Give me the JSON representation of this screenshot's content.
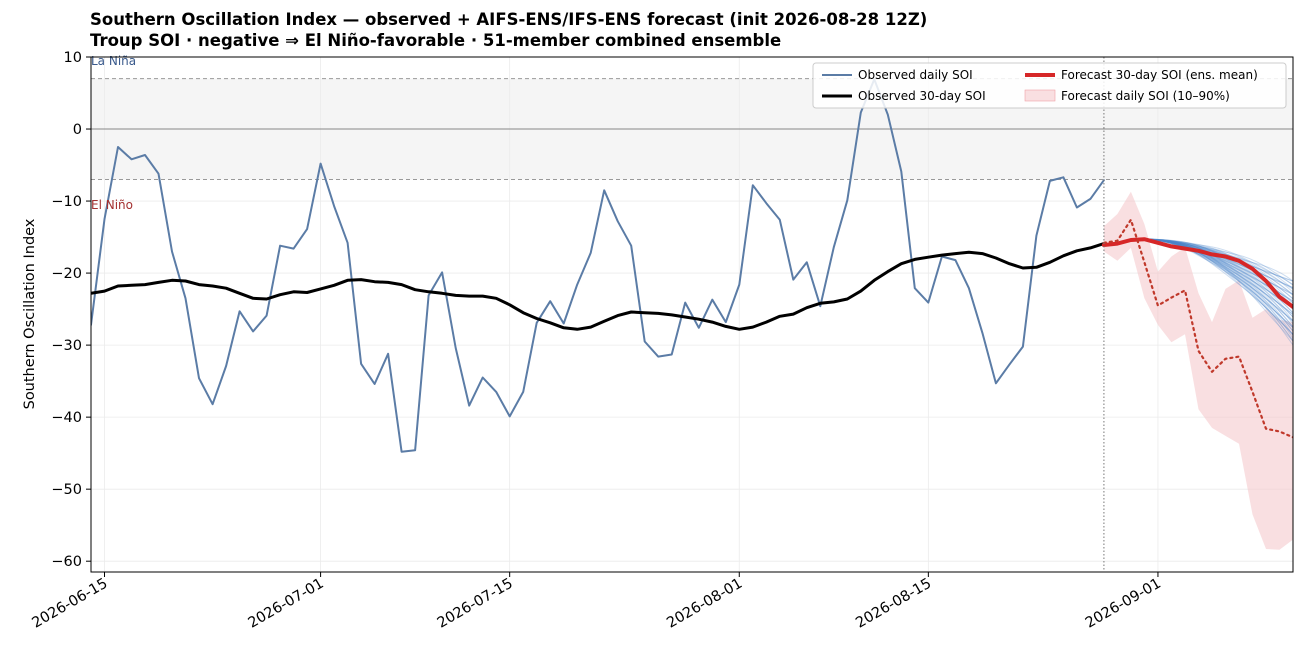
{
  "chart_data": {
    "type": "line",
    "title": "Southern Oscillation Index — observed + AIFS-ENS/IFS-ENS forecast (init 2026-08-28 12Z)",
    "subtitle": "Troup SOI · negative ⇒ El Niño-favorable · 51-member combined ensemble",
    "ylabel": "Southern Oscillation Index",
    "xlabel": "",
    "xlim": [
      "2026-06-14",
      "2026-09-11"
    ],
    "ylim": [
      -61.5,
      10
    ],
    "init_date": "2026-08-28",
    "grid": true,
    "legend_position": "top-right",
    "x_ticks": [
      "2026-06-15",
      "2026-07-01",
      "2026-07-15",
      "2026-08-01",
      "2026-08-15",
      "2026-09-01"
    ],
    "y_ticks": [
      10,
      0,
      -10,
      -20,
      -30,
      -40,
      -50,
      -60
    ],
    "reference_lines": [
      {
        "y": 7,
        "style": "dashed",
        "color": "#999999"
      },
      {
        "y": 0,
        "style": "solid",
        "color": "#888888"
      },
      {
        "y": -7,
        "style": "dashed",
        "color": "#999999"
      }
    ],
    "annotations": [
      {
        "text": "La Niña",
        "color": "#3a5a8c"
      },
      {
        "text": "El Niño",
        "color": "#a33030"
      }
    ],
    "legend": [
      {
        "label": "Observed daily SOI",
        "kind": "line",
        "color": "#5b7ca6"
      },
      {
        "label": "Observed 30-day SOI",
        "kind": "line",
        "color": "#000000"
      },
      {
        "label": "Forecast 30-day SOI (ens. mean)",
        "kind": "line",
        "color": "#d62728"
      },
      {
        "label": "Forecast daily SOI (10–90%)",
        "kind": "band",
        "color": "#f4c5c8"
      }
    ],
    "series": [
      {
        "name": "Observed daily SOI",
        "color": "#5b7ca6",
        "x": [
          "2026-06-14",
          "2026-06-15",
          "2026-06-16",
          "2026-06-17",
          "2026-06-18",
          "2026-06-19",
          "2026-06-20",
          "2026-06-21",
          "2026-06-22",
          "2026-06-23",
          "2026-06-24",
          "2026-06-25",
          "2026-06-26",
          "2026-06-27",
          "2026-06-28",
          "2026-06-29",
          "2026-06-30",
          "2026-07-01",
          "2026-07-02",
          "2026-07-03",
          "2026-07-04",
          "2026-07-05",
          "2026-07-06",
          "2026-07-07",
          "2026-07-08",
          "2026-07-09",
          "2026-07-10",
          "2026-07-11",
          "2026-07-12",
          "2026-07-13",
          "2026-07-14",
          "2026-07-15",
          "2026-07-16",
          "2026-07-17",
          "2026-07-18",
          "2026-07-19",
          "2026-07-20",
          "2026-07-21",
          "2026-07-22",
          "2026-07-23",
          "2026-07-24",
          "2026-07-25",
          "2026-07-26",
          "2026-07-27",
          "2026-07-28",
          "2026-07-29",
          "2026-07-30",
          "2026-07-31",
          "2026-08-01",
          "2026-08-02",
          "2026-08-03",
          "2026-08-04",
          "2026-08-05",
          "2026-08-06",
          "2026-08-07",
          "2026-08-08",
          "2026-08-09",
          "2026-08-10",
          "2026-08-11",
          "2026-08-12",
          "2026-08-13",
          "2026-08-14",
          "2026-08-15",
          "2026-08-16",
          "2026-08-17",
          "2026-08-18",
          "2026-08-19",
          "2026-08-20",
          "2026-08-21",
          "2026-08-22",
          "2026-08-23",
          "2026-08-24",
          "2026-08-25",
          "2026-08-26",
          "2026-08-27",
          "2026-08-28"
        ],
        "values": [
          -27.2,
          -12.5,
          -2.5,
          -4.2,
          -3.6,
          -6.2,
          -17.0,
          -23.5,
          -34.6,
          -38.2,
          -32.9,
          -25.3,
          -28.1,
          -25.9,
          -16.2,
          -16.6,
          -13.9,
          -4.8,
          -10.7,
          -15.8,
          -32.6,
          -35.4,
          -31.2,
          -44.8,
          -44.6,
          -23.1,
          -19.9,
          -30.4,
          -38.4,
          -34.5,
          -36.5,
          -39.9,
          -36.5,
          -26.9,
          -23.9,
          -27.0,
          -21.6,
          -17.2,
          -8.5,
          -12.8,
          -16.2,
          -29.5,
          -31.6,
          -31.3,
          -24.1,
          -27.6,
          -23.7,
          -26.8,
          -21.6,
          -7.8,
          -10.3,
          -12.6,
          -20.9,
          -18.5,
          -24.6,
          -16.4,
          -9.9,
          2.3,
          6.9,
          2.0,
          -5.9,
          -22.1,
          -24.1,
          -17.7,
          -18.2,
          -22.1,
          -28.3,
          -35.3,
          -32.7,
          -30.2,
          -14.8,
          -7.2,
          -6.7,
          -10.9,
          -9.7,
          -7.1
        ]
      },
      {
        "name": "Observed 30-day SOI",
        "color": "#000000",
        "x": [
          "2026-06-14",
          "2026-06-15",
          "2026-06-16",
          "2026-06-17",
          "2026-06-18",
          "2026-06-19",
          "2026-06-20",
          "2026-06-21",
          "2026-06-22",
          "2026-06-23",
          "2026-06-24",
          "2026-06-25",
          "2026-06-26",
          "2026-06-27",
          "2026-06-28",
          "2026-06-29",
          "2026-06-30",
          "2026-07-01",
          "2026-07-02",
          "2026-07-03",
          "2026-07-04",
          "2026-07-05",
          "2026-07-06",
          "2026-07-07",
          "2026-07-08",
          "2026-07-09",
          "2026-07-10",
          "2026-07-11",
          "2026-07-12",
          "2026-07-13",
          "2026-07-14",
          "2026-07-15",
          "2026-07-16",
          "2026-07-17",
          "2026-07-18",
          "2026-07-19",
          "2026-07-20",
          "2026-07-21",
          "2026-07-22",
          "2026-07-23",
          "2026-07-24",
          "2026-07-25",
          "2026-07-26",
          "2026-07-27",
          "2026-07-28",
          "2026-07-29",
          "2026-07-30",
          "2026-07-31",
          "2026-08-01",
          "2026-08-02",
          "2026-08-03",
          "2026-08-04",
          "2026-08-05",
          "2026-08-06",
          "2026-08-07",
          "2026-08-08",
          "2026-08-09",
          "2026-08-10",
          "2026-08-11",
          "2026-08-12",
          "2026-08-13",
          "2026-08-14",
          "2026-08-15",
          "2026-08-16",
          "2026-08-17",
          "2026-08-18",
          "2026-08-19",
          "2026-08-20",
          "2026-08-21",
          "2026-08-22",
          "2026-08-23",
          "2026-08-24",
          "2026-08-25",
          "2026-08-26",
          "2026-08-27",
          "2026-08-28"
        ],
        "values": [
          -22.8,
          -22.5,
          -21.8,
          -21.7,
          -21.6,
          -21.3,
          -21.0,
          -21.1,
          -21.6,
          -21.8,
          -22.1,
          -22.8,
          -23.5,
          -23.6,
          -23.0,
          -22.6,
          -22.7,
          -22.2,
          -21.7,
          -21.0,
          -20.9,
          -21.2,
          -21.3,
          -21.6,
          -22.3,
          -22.6,
          -22.8,
          -23.1,
          -23.2,
          -23.2,
          -23.5,
          -24.4,
          -25.5,
          -26.3,
          -26.9,
          -27.6,
          -27.8,
          -27.5,
          -26.7,
          -25.9,
          -25.4,
          -25.5,
          -25.6,
          -25.8,
          -26.1,
          -26.4,
          -26.8,
          -27.4,
          -27.8,
          -27.5,
          -26.8,
          -26.0,
          -25.7,
          -24.8,
          -24.2,
          -24.0,
          -23.6,
          -22.5,
          -21.0,
          -19.8,
          -18.7,
          -18.1,
          -17.8,
          -17.5,
          -17.3,
          -17.1,
          -17.3,
          -17.9,
          -18.7,
          -19.3,
          -19.2,
          -18.5,
          -17.6,
          -16.9,
          -16.5,
          -15.9
        ]
      },
      {
        "name": "Forecast 30-day SOI (ens. mean)",
        "color": "#d62728",
        "x": [
          "2026-08-28",
          "2026-08-29",
          "2026-08-30",
          "2026-08-31",
          "2026-09-01",
          "2026-09-02",
          "2026-09-03",
          "2026-09-04",
          "2026-09-05",
          "2026-09-06",
          "2026-09-07",
          "2026-09-08",
          "2026-09-09",
          "2026-09-10",
          "2026-09-11"
        ],
        "values": [
          -16.1,
          -15.9,
          -15.4,
          -15.3,
          -15.8,
          -16.3,
          -16.6,
          -16.9,
          -17.4,
          -17.7,
          -18.3,
          -19.4,
          -21.1,
          -23.3,
          -24.7
        ]
      },
      {
        "name": "Forecast daily SOI (median)",
        "color": "#c0392b",
        "x": [
          "2026-08-28",
          "2026-08-29",
          "2026-08-30",
          "2026-08-31",
          "2026-09-01",
          "2026-09-02",
          "2026-09-03",
          "2026-09-04",
          "2026-09-05",
          "2026-09-06",
          "2026-09-07",
          "2026-09-08",
          "2026-09-09",
          "2026-09-10",
          "2026-09-11"
        ],
        "values": [
          -15.8,
          -15.5,
          -12.6,
          -18.5,
          -24.5,
          -23.4,
          -22.4,
          -30.8,
          -33.7,
          -31.9,
          -31.6,
          -36.5,
          -41.6,
          -42.0,
          -42.8
        ]
      }
    ],
    "band": {
      "name": "Forecast daily SOI (10–90%)",
      "x": [
        "2026-08-28",
        "2026-08-29",
        "2026-08-30",
        "2026-08-31",
        "2026-09-01",
        "2026-09-02",
        "2026-09-03",
        "2026-09-04",
        "2026-09-05",
        "2026-09-06",
        "2026-09-07",
        "2026-09-08",
        "2026-09-09",
        "2026-09-10",
        "2026-09-11"
      ],
      "upper": [
        -13.5,
        -11.8,
        -8.7,
        -13.2,
        -19.8,
        -17.7,
        -16.4,
        -22.8,
        -26.8,
        -22.2,
        -21.0,
        -26.2,
        -25.0,
        -26.5,
        -26.8
      ],
      "lower": [
        -17.0,
        -18.3,
        -16.5,
        -23.5,
        -27.2,
        -29.6,
        -28.5,
        -38.9,
        -41.5,
        -42.6,
        -43.7,
        -53.5,
        -58.3,
        -58.4,
        -57.0
      ]
    },
    "ensemble_members": {
      "count": 51,
      "color": "#4a86c8",
      "start_date": "2026-08-31",
      "start_value": -15.3,
      "end_date": "2026-09-11",
      "end_min": -29.7,
      "end_max": -21.0
    }
  }
}
